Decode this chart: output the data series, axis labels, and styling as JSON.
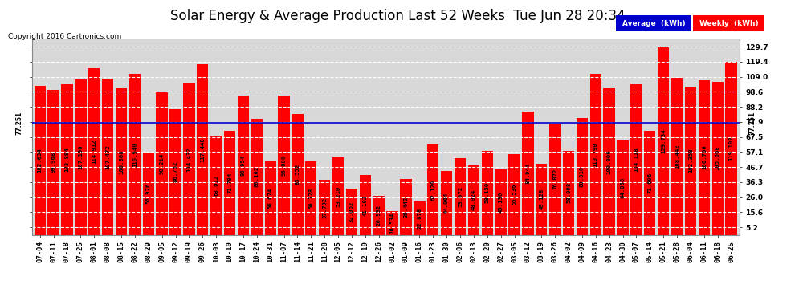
{
  "title": "Solar Energy & Average Production Last 52 Weeks  Tue Jun 28 20:34",
  "copyright": "Copyright 2016 Cartronics.com",
  "bar_color": "#FF0000",
  "average_color": "#0000CD",
  "average_value": 77.251,
  "ylabel_right": [
    "129.7",
    "119.4",
    "109.0",
    "98.6",
    "88.2",
    "77.9",
    "67.5",
    "57.1",
    "46.7",
    "36.3",
    "26.0",
    "15.6",
    "5.2"
  ],
  "ytick_vals": [
    129.7,
    119.4,
    109.0,
    98.6,
    88.2,
    77.9,
    67.5,
    57.1,
    46.7,
    36.3,
    26.0,
    15.6,
    5.2
  ],
  "left_avg_label": "77.251",
  "right_avg_label": "77.251",
  "categories": [
    "07-04",
    "07-11",
    "07-18",
    "07-25",
    "08-01",
    "08-08",
    "08-15",
    "08-22",
    "08-29",
    "09-05",
    "09-12",
    "09-19",
    "09-26",
    "10-03",
    "10-10",
    "10-17",
    "10-24",
    "10-31",
    "11-07",
    "11-14",
    "11-21",
    "11-28",
    "12-05",
    "12-12",
    "12-19",
    "12-26",
    "01-02",
    "01-09",
    "01-16",
    "01-23",
    "01-30",
    "02-06",
    "02-13",
    "02-20",
    "02-27",
    "03-05",
    "03-12",
    "03-19",
    "03-26",
    "04-02",
    "04-09",
    "04-16",
    "04-23",
    "04-30",
    "05-07",
    "05-14",
    "05-21",
    "05-28",
    "06-04",
    "06-11",
    "06-18",
    "06-25"
  ],
  "values": [
    102.634,
    99.968,
    103.894,
    107.19,
    114.912,
    107.472,
    100.808,
    110.94,
    56.976,
    98.214,
    86.762,
    104.432,
    117.448,
    68.012,
    71.794,
    95.954,
    80.102,
    50.674,
    96.0,
    83.552,
    50.728,
    37.792,
    53.21,
    32.062,
    41.102,
    26.932,
    16.534,
    38.442,
    22.878,
    62.12,
    44.064,
    53.072,
    48.024,
    58.15,
    45.136,
    55.536,
    84.944,
    49.128,
    76.872,
    58.008,
    80.81,
    110.79,
    100.906,
    64.858,
    104.118,
    71.606,
    129.734,
    108.442,
    102.358,
    106.766,
    105.668,
    119.102
  ],
  "ylim_min": 0,
  "ylim_max": 135,
  "plot_bg": "#D8D8D8",
  "fig_bg": "#FFFFFF",
  "grid_color": "#FFFFFF",
  "title_fontsize": 12,
  "tick_fontsize": 6.5,
  "bar_label_fontsize": 5.2,
  "legend_avg_color": "#0000CD",
  "legend_weekly_color": "#FF0000"
}
